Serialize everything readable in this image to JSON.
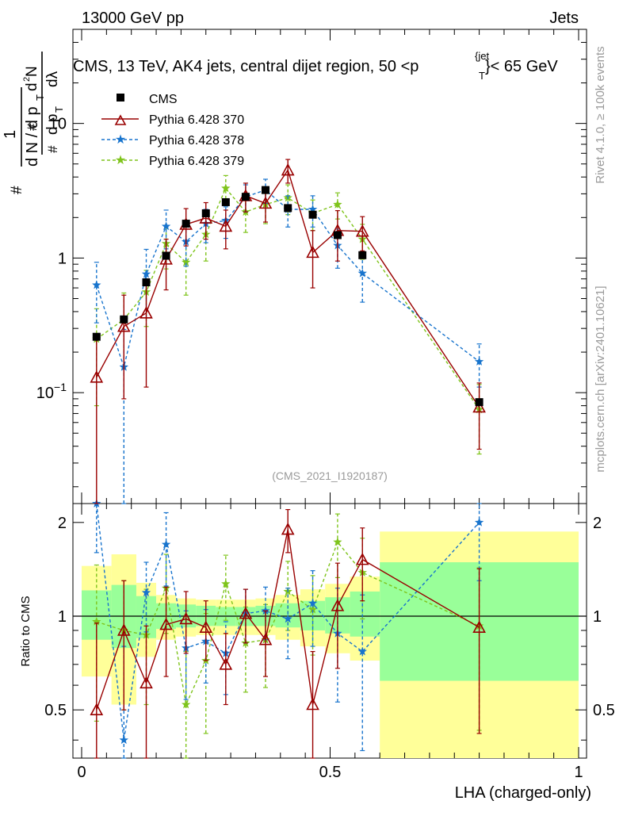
{
  "header": {
    "left": "13000 GeV pp",
    "right": "Jets"
  },
  "side_labels": {
    "rivet": "Rivet 4.1.0, ≥ 100k events",
    "mcplots": "mcplots.cern.ch [arXiv:2401.10621]"
  },
  "chart_data": {
    "type": "scatter",
    "title": "CMS, 13 TeV, AK4 jets, central dijet region, 50 <p_T^{jet}< 65 GeV",
    "analysis_id": "(CMS_2021_I1920187)",
    "xlabel": "LHA (charged-only)",
    "ylabel": "1/(dN/dpT) d²N/(dpT dλ)",
    "ratio_ylabel": "Ratio to CMS",
    "xlim": [
      0,
      1
    ],
    "ylim": [
      0.015,
      50
    ],
    "yscale": "log",
    "ratio_ylim": [
      0.35,
      2.3
    ],
    "xticks": [
      0,
      0.5,
      1
    ],
    "xtick_labels": [
      "0",
      "0.5",
      "1"
    ],
    "yticks": [
      0.1,
      1,
      10
    ],
    "ytick_labels": [
      "10^{-1}",
      "1",
      "10"
    ],
    "ratio_yticks": [
      0.5,
      1,
      2
    ],
    "ratio_ytick_labels": [
      "0.5",
      "1",
      "2"
    ],
    "legend": [
      "CMS",
      "Pythia 6.428 370",
      "Pythia 6.428 378",
      "Pythia 6.428 379"
    ],
    "legend_position": "top-left",
    "data": {
      "name": "CMS",
      "x": [
        0.03,
        0.085,
        0.13,
        0.17,
        0.21,
        0.25,
        0.29,
        0.33,
        0.37,
        0.415,
        0.465,
        0.515,
        0.565,
        0.8
      ],
      "y": [
        0.26,
        0.35,
        0.66,
        1.04,
        1.8,
        2.15,
        2.6,
        2.85,
        3.2,
        2.35,
        2.1,
        1.48,
        1.05,
        0.085
      ]
    },
    "bands": {
      "edges": [
        0,
        0.06,
        0.11,
        0.15,
        0.19,
        0.23,
        0.27,
        0.31,
        0.35,
        0.39,
        0.44,
        0.49,
        0.54,
        0.6,
        1.0
      ],
      "inner": [
        [
          0.84,
          1.21
        ],
        [
          0.79,
          1.26
        ],
        [
          0.85,
          1.16
        ],
        [
          0.91,
          1.1
        ],
        [
          0.92,
          1.09
        ],
        [
          0.93,
          1.08
        ],
        [
          0.93,
          1.07
        ],
        [
          0.93,
          1.07
        ],
        [
          0.93,
          1.08
        ],
        [
          0.92,
          1.1
        ],
        [
          0.9,
          1.12
        ],
        [
          0.88,
          1.15
        ],
        [
          0.86,
          1.2
        ],
        [
          0.62,
          1.49
        ]
      ],
      "outer": [
        [
          0.64,
          1.45
        ],
        [
          0.52,
          1.58
        ],
        [
          0.74,
          1.28
        ],
        [
          0.84,
          1.17
        ],
        [
          0.86,
          1.14
        ],
        [
          0.87,
          1.13
        ],
        [
          0.87,
          1.13
        ],
        [
          0.87,
          1.13
        ],
        [
          0.87,
          1.14
        ],
        [
          0.84,
          1.17
        ],
        [
          0.8,
          1.22
        ],
        [
          0.76,
          1.27
        ],
        [
          0.72,
          1.34
        ],
        [
          0.35,
          1.87
        ]
      ]
    },
    "series": [
      {
        "name": "Pythia 6.428 370",
        "color": "#990000",
        "marker": "triangle",
        "dash": "",
        "x": [
          0.03,
          0.085,
          0.13,
          0.17,
          0.21,
          0.25,
          0.29,
          0.33,
          0.37,
          0.415,
          0.465,
          0.515,
          0.565,
          0.8
        ],
        "y": [
          0.13,
          0.31,
          0.39,
          0.98,
          1.78,
          1.98,
          1.72,
          2.9,
          2.55,
          4.5,
          1.1,
          1.6,
          1.58,
          0.078
        ],
        "yerr": [
          0.13,
          0.22,
          0.28,
          0.4,
          0.55,
          0.6,
          0.55,
          0.7,
          0.7,
          0.9,
          0.5,
          0.65,
          0.45,
          0.04
        ],
        "ratio": [
          0.5,
          0.9,
          0.61,
          0.94,
          0.98,
          0.92,
          0.7,
          1.02,
          0.84,
          1.9,
          0.52,
          1.08,
          1.52,
          0.92
        ],
        "ratio_err": [
          0.45,
          0.4,
          0.32,
          0.3,
          0.22,
          0.2,
          0.18,
          0.2,
          0.2,
          0.3,
          0.25,
          0.4,
          0.4,
          0.5
        ]
      },
      {
        "name": "Pythia 6.428 378",
        "color": "#1874cd",
        "marker": "star",
        "dash": "4,3",
        "x": [
          0.03,
          0.085,
          0.13,
          0.17,
          0.21,
          0.25,
          0.29,
          0.33,
          0.37,
          0.415,
          0.465,
          0.515,
          0.565,
          0.8
        ],
        "y": [
          0.63,
          0.155,
          0.76,
          1.72,
          1.32,
          1.8,
          1.9,
          2.85,
          3.2,
          2.3,
          2.3,
          1.24,
          0.77,
          0.17
        ],
        "yerr": [
          0.3,
          0.14,
          0.4,
          0.55,
          0.45,
          0.5,
          0.5,
          0.65,
          0.65,
          0.6,
          0.6,
          0.4,
          0.3,
          0.06
        ],
        "ratio": [
          2.4,
          0.4,
          1.19,
          1.7,
          0.79,
          0.83,
          0.76,
          1.02,
          1.04,
          0.98,
          1.1,
          0.88,
          0.77,
          2.0
        ],
        "ratio_err": [
          0.8,
          0.4,
          0.3,
          0.45,
          0.25,
          0.22,
          0.2,
          0.2,
          0.2,
          0.25,
          0.3,
          0.35,
          0.4,
          0.7
        ]
      },
      {
        "name": "Pythia 6.428 379",
        "color": "#7fc41c",
        "marker": "star",
        "dash": "4,3",
        "x": [
          0.03,
          0.085,
          0.13,
          0.17,
          0.21,
          0.25,
          0.29,
          0.33,
          0.37,
          0.415,
          0.465,
          0.515,
          0.565,
          0.8
        ],
        "y": [
          0.25,
          0.35,
          0.56,
          1.28,
          0.93,
          1.5,
          3.3,
          2.2,
          2.5,
          2.8,
          2.15,
          2.5,
          1.38,
          0.075
        ],
        "yerr": [
          0.17,
          0.2,
          0.25,
          0.45,
          0.4,
          0.55,
          0.8,
          0.65,
          0.7,
          0.7,
          0.55,
          0.55,
          0.4,
          0.04
        ],
        "ratio": [
          0.96,
          0.9,
          0.87,
          1.23,
          0.52,
          0.72,
          1.27,
          0.82,
          0.84,
          1.2,
          1.05,
          1.73,
          1.38,
          0.93
        ],
        "ratio_err": [
          0.5,
          0.4,
          0.35,
          0.35,
          0.25,
          0.3,
          0.3,
          0.25,
          0.25,
          0.3,
          0.3,
          0.4,
          0.4,
          0.5
        ]
      }
    ]
  }
}
